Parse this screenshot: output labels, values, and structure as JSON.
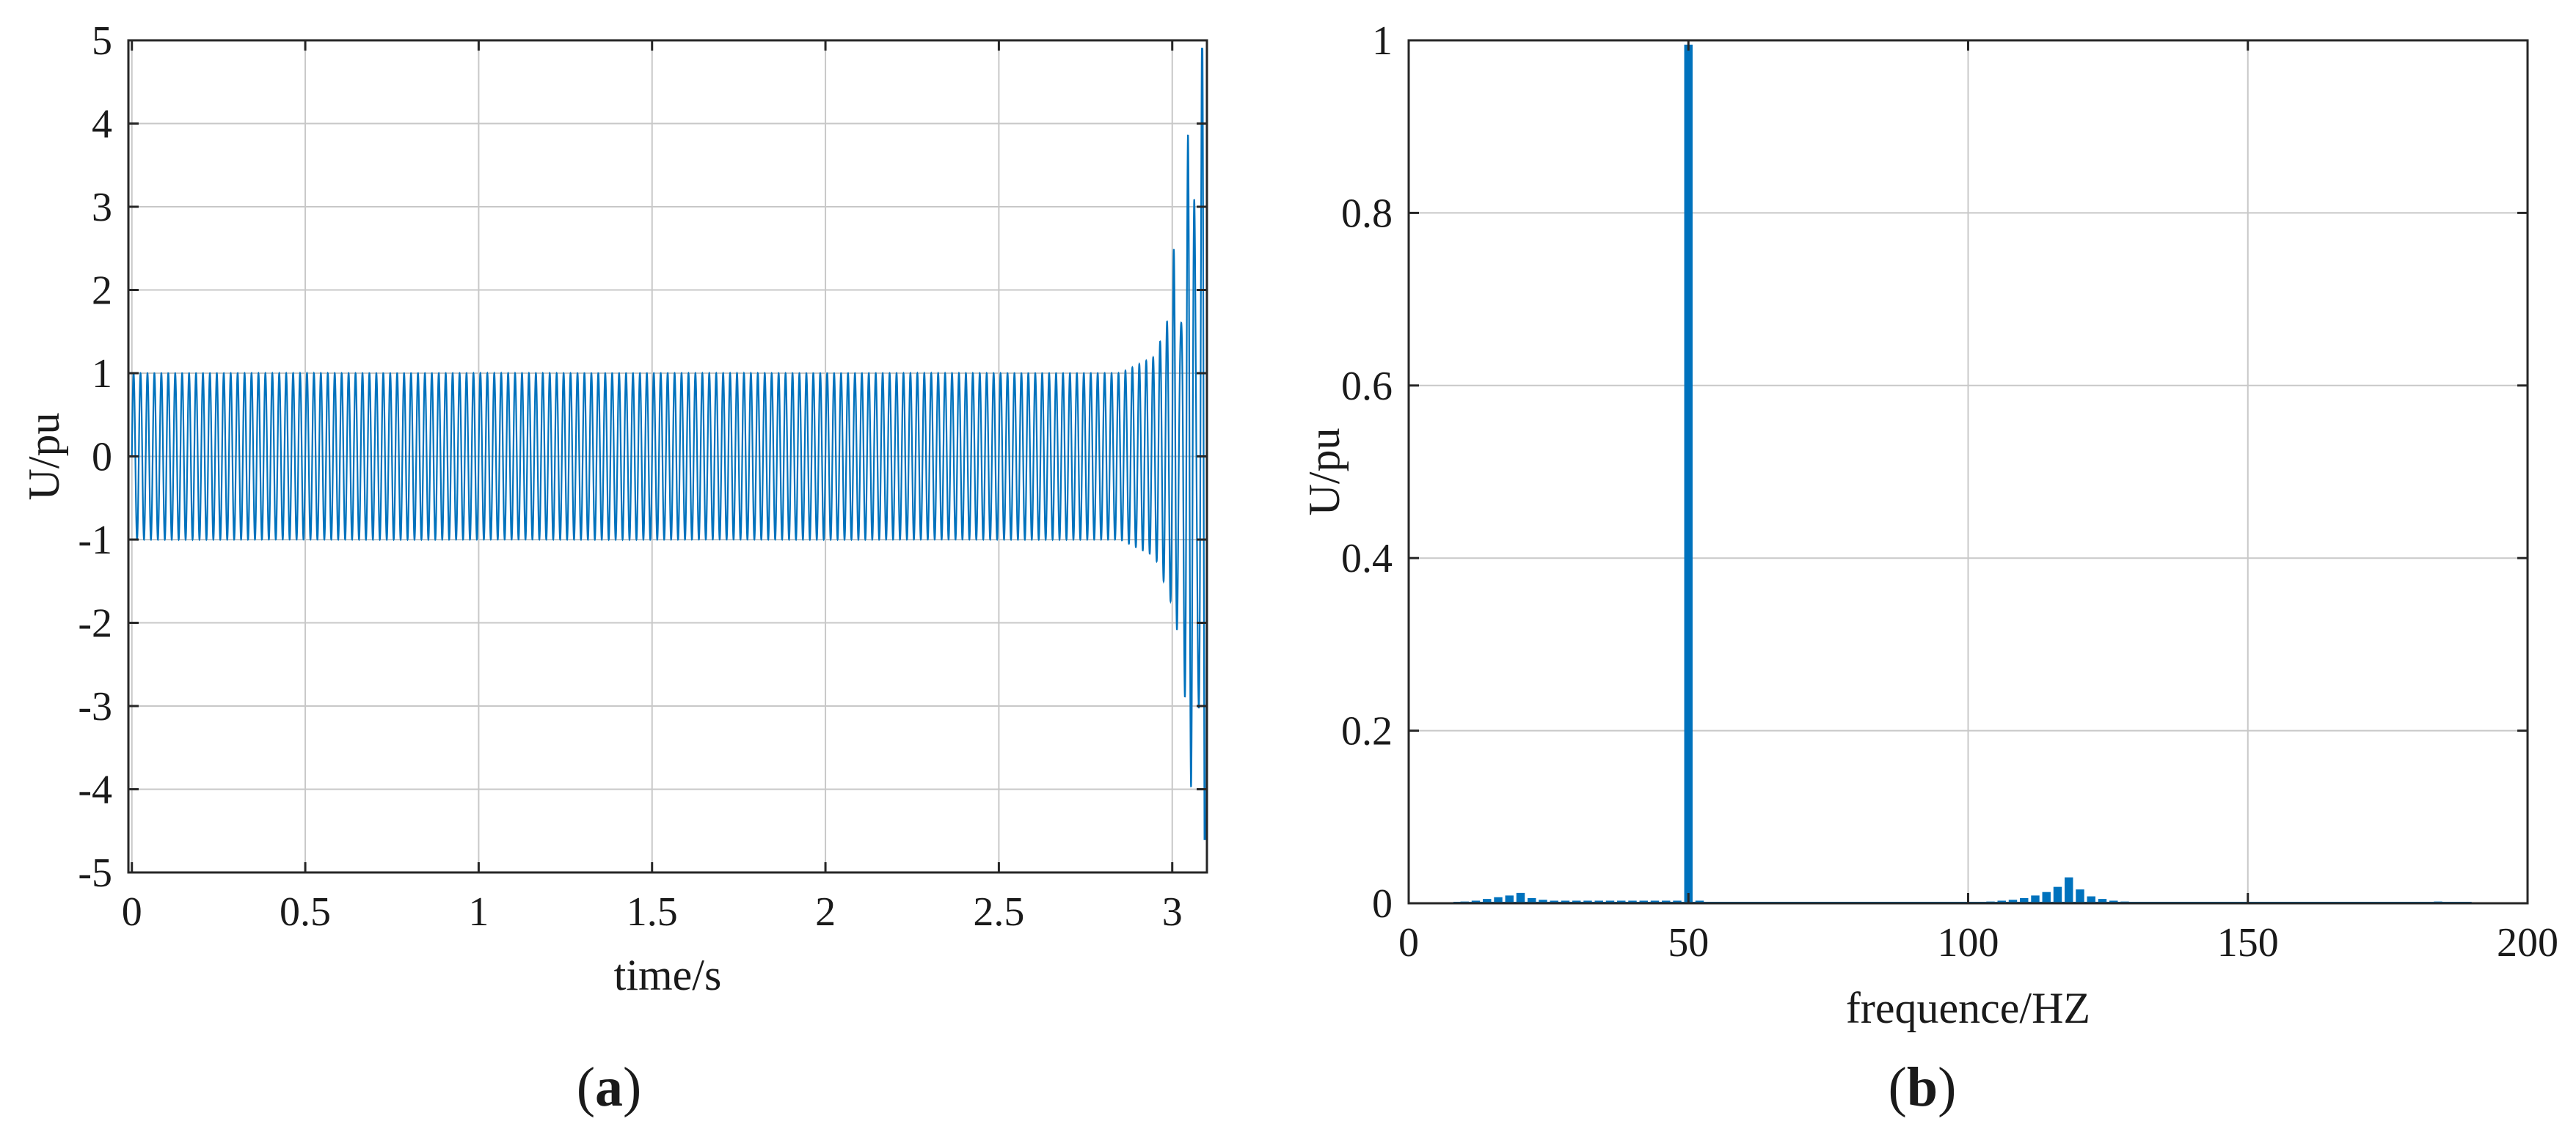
{
  "captions": {
    "a_letter": "a",
    "b_letter": "b"
  },
  "colors": {
    "series": "#0072bd",
    "grid": "#c8c8c8",
    "axis": "#262626"
  },
  "chart_data": [
    {
      "type": "line",
      "xlabel": "time/s",
      "ylabel": "U/pu",
      "xlim": [
        -0.01,
        3.1
      ],
      "ylim": [
        -5,
        5
      ],
      "xticks": [
        "0",
        "0.5",
        "1",
        "1.5",
        "2",
        "2.5",
        "3"
      ],
      "yticks": [
        "-5",
        "-4",
        "-3",
        "-2",
        "-1",
        "0",
        "1",
        "2",
        "3",
        "4",
        "5"
      ],
      "grid": true,
      "series": [
        {
          "frequency_hz": 50,
          "steady_amplitude": 1,
          "steady_until": 2.85,
          "envelope": [
            [
              2.85,
              1.0
            ],
            [
              2.95,
              1.2
            ],
            [
              3.0,
              1.8
            ],
            [
              3.05,
              3.0
            ],
            [
              3.08,
              4.2
            ],
            [
              3.1,
              5.0
            ]
          ],
          "end_peaks": {
            "max": 4.9,
            "min": -4.6
          }
        }
      ]
    },
    {
      "type": "bar",
      "xlabel": "frequence/HZ",
      "ylabel": "U/pu",
      "xlim": [
        0,
        200
      ],
      "ylim": [
        0,
        1
      ],
      "xticks": [
        "0",
        "50",
        "100",
        "150",
        "200"
      ],
      "yticks": [
        "0",
        "0.2",
        "0.4",
        "0.6",
        "0.8",
        "1"
      ],
      "grid": true,
      "x": [
        8,
        10,
        12,
        14,
        16,
        18,
        20,
        22,
        24,
        26,
        28,
        30,
        32,
        34,
        36,
        38,
        40,
        42,
        44,
        46,
        48,
        50,
        52,
        88,
        92,
        96,
        100,
        104,
        106,
        108,
        110,
        112,
        114,
        116,
        118,
        120,
        122,
        124,
        126,
        128,
        180,
        184,
        188
      ],
      "values": [
        0.001,
        0.002,
        0.003,
        0.005,
        0.007,
        0.009,
        0.012,
        0.006,
        0.004,
        0.003,
        0.003,
        0.003,
        0.003,
        0.003,
        0.003,
        0.003,
        0.003,
        0.003,
        0.003,
        0.003,
        0.003,
        0.995,
        0.003,
        0.001,
        0.001,
        0.001,
        0.001,
        0.002,
        0.003,
        0.004,
        0.006,
        0.009,
        0.013,
        0.019,
        0.03,
        0.016,
        0.008,
        0.005,
        0.003,
        0.002,
        0.001,
        0.002,
        0.001
      ]
    }
  ]
}
